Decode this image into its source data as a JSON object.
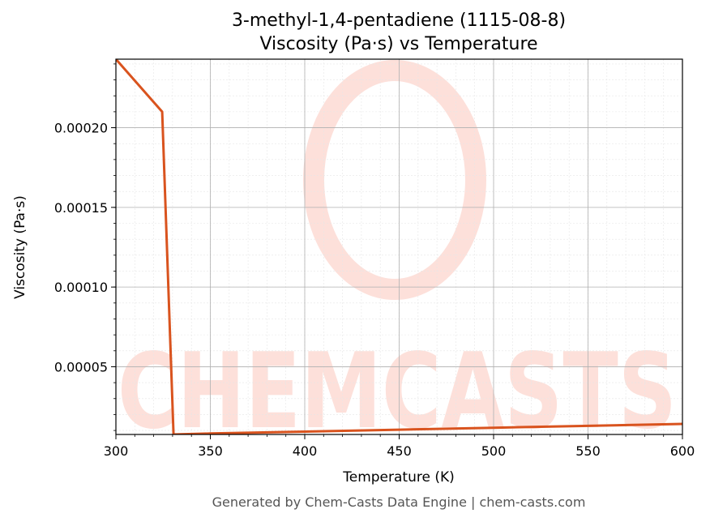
{
  "chart_data": {
    "type": "line",
    "title": "3-methyl-1,4-pentadiene (1115-08-8)",
    "subtitle": "Viscosity (Pa·s) vs Temperature",
    "xlabel": "Temperature (K)",
    "ylabel": "Viscosity (Pa·s)",
    "xlim": [
      300,
      600
    ],
    "ylim": [
      7.5e-06,
      0.000243
    ],
    "x_ticks": [
      300,
      350,
      400,
      450,
      500,
      550,
      600
    ],
    "x_tick_labels": [
      "300",
      "350",
      "400",
      "450",
      "500",
      "550",
      "600"
    ],
    "y_ticks": [
      5e-05,
      0.0001,
      0.00015,
      0.0002
    ],
    "y_tick_labels": [
      "0.00005",
      "0.00010",
      "0.00015",
      "0.00020"
    ],
    "grid": true,
    "series": [
      {
        "color": "#d9531e",
        "x": [
          300,
          324.5,
          330.5,
          350,
          400,
          450,
          500,
          550,
          600
        ],
        "y": [
          0.000243,
          0.00021,
          7.5e-06,
          8.1e-06,
          9.3e-06,
          1.05e-05,
          1.17e-05,
          1.29e-05,
          1.41e-05
        ]
      }
    ]
  },
  "watermark": {
    "text": "CHEMCASTS",
    "color": "#fde0da"
  },
  "footer": {
    "text": "Generated by Chem-Casts Data Engine | chem-casts.com"
  }
}
